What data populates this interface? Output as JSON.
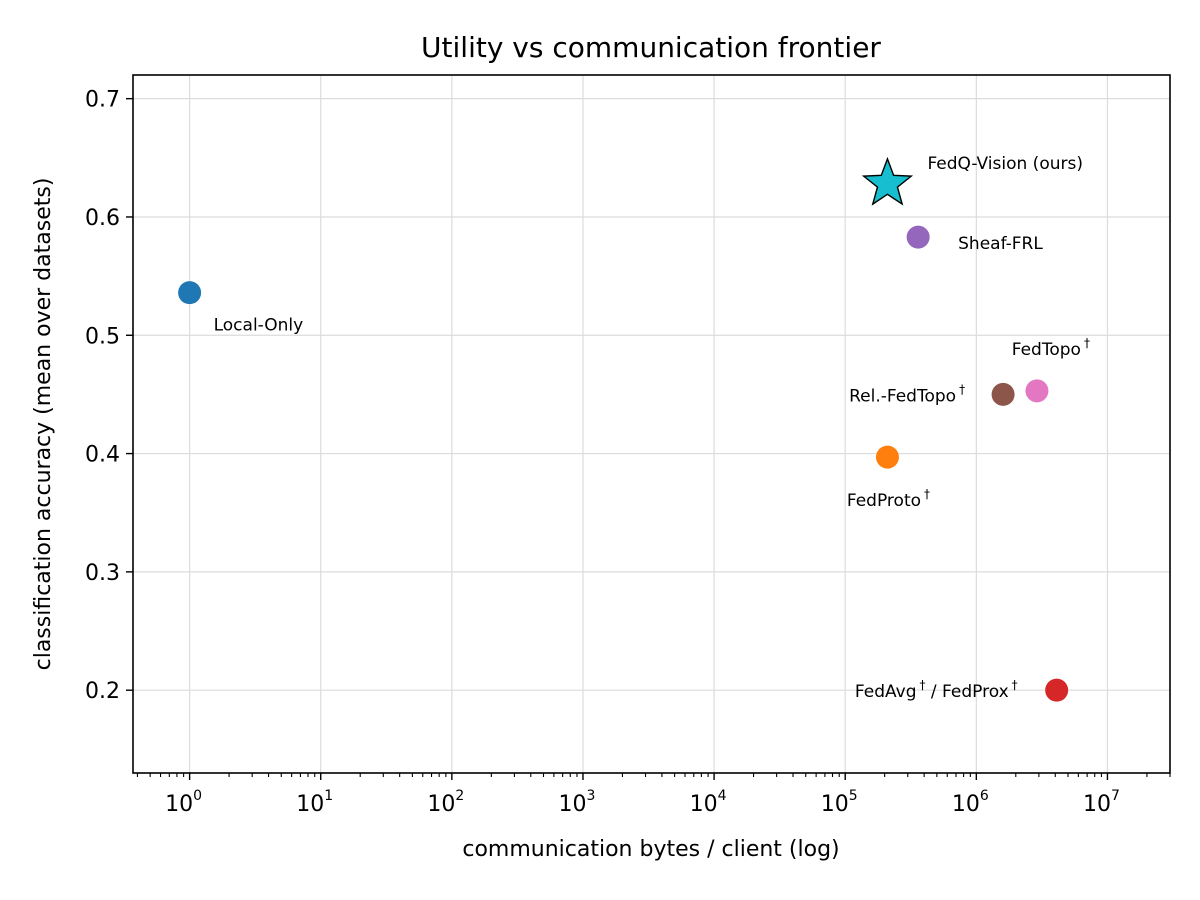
{
  "chart_data": {
    "type": "scatter",
    "title": "Utility vs communication frontier",
    "xlabel": "communication bytes / client (log)",
    "ylabel": "classification accuracy (mean over datasets)",
    "xscale": "log",
    "xlim": [
      0.37,
      30000000
    ],
    "ylim": [
      0.13,
      0.72
    ],
    "grid": true,
    "x_ticks": [
      {
        "base": "10",
        "exp": "0",
        "value": 1
      },
      {
        "base": "10",
        "exp": "1",
        "value": 10
      },
      {
        "base": "10",
        "exp": "2",
        "value": 100
      },
      {
        "base": "10",
        "exp": "3",
        "value": 1000
      },
      {
        "base": "10",
        "exp": "4",
        "value": 10000
      },
      {
        "base": "10",
        "exp": "5",
        "value": 100000
      },
      {
        "base": "10",
        "exp": "6",
        "value": 1000000
      },
      {
        "base": "10",
        "exp": "7",
        "value": 10000000
      }
    ],
    "y_ticks": [
      {
        "label": "0.2",
        "value": 0.2
      },
      {
        "label": "0.3",
        "value": 0.3
      },
      {
        "label": "0.4",
        "value": 0.4
      },
      {
        "label": "0.5",
        "value": 0.5
      },
      {
        "label": "0.6",
        "value": 0.6
      },
      {
        "label": "0.7",
        "value": 0.7
      }
    ],
    "points": [
      {
        "key": "local-only",
        "text": "Local-Only",
        "sup": "",
        "x": 1,
        "y": 0.536,
        "color": "#1f77b4",
        "marker": "circle",
        "anchor": "start"
      },
      {
        "key": "fedq-vision",
        "text": "FedQ-Vision (ours)",
        "sup": "",
        "x": 210000,
        "y": 0.628,
        "color": "#17becf",
        "marker": "star",
        "anchor": "start"
      },
      {
        "key": "sheaf-frl",
        "text": "Sheaf-FRL",
        "sup": "",
        "x": 360000,
        "y": 0.583,
        "color": "#9467bd",
        "marker": "circle",
        "anchor": "start"
      },
      {
        "key": "fedtopo",
        "text": "FedTopo",
        "sup": "†",
        "x": 2900000,
        "y": 0.453,
        "color": "#e377c2",
        "marker": "circle",
        "anchor": "end"
      },
      {
        "key": "rel-fedtopo",
        "text": "Rel.-FedTopo",
        "sup": "†",
        "x": 1600000,
        "y": 0.45,
        "color": "#8c564b",
        "marker": "circle",
        "anchor": "end"
      },
      {
        "key": "fedproto",
        "text": "FedProto",
        "sup": "†",
        "x": 210000,
        "y": 0.397,
        "color": "#ff7f0e",
        "marker": "circle",
        "anchor": "middle"
      },
      {
        "key": "fedavg-fedprox",
        "text": "FedAvg",
        "sup": "†",
        "text2": " / FedProx",
        "sup2": "†",
        "x": 4100000,
        "y": 0.2,
        "color": "#d62728",
        "marker": "circle",
        "anchor": "end"
      }
    ]
  }
}
